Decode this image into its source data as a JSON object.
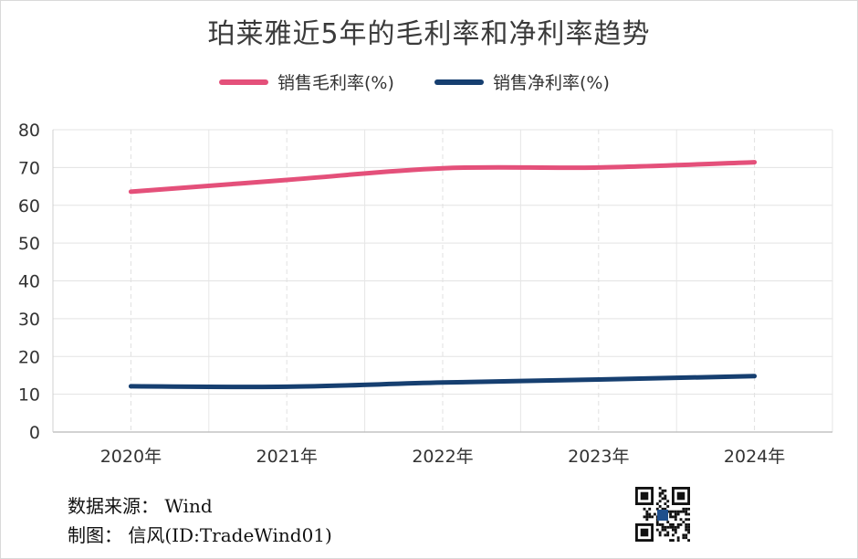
{
  "chart_data": {
    "type": "line",
    "title": "珀莱雅近5年的毛利率和净利率趋势",
    "categories": [
      "2020年",
      "2021年",
      "2022年",
      "2023年",
      "2024年"
    ],
    "series": [
      {
        "name": "销售毛利率(%)",
        "color": "#e4507a",
        "values": [
          63.6,
          66.7,
          69.8,
          70.0,
          71.4
        ]
      },
      {
        "name": "销售净利率(%)",
        "color": "#163f70",
        "values": [
          12.1,
          12.0,
          13.1,
          13.9,
          14.8
        ]
      }
    ],
    "ylim": [
      0,
      80
    ],
    "yticks": [
      0,
      10,
      20,
      30,
      40,
      50,
      60,
      70,
      80
    ],
    "grid": true,
    "legend": "top"
  },
  "footer": {
    "source": "数据来源： Wind",
    "author": "制图： 信风(ID:TradeWind01)"
  }
}
